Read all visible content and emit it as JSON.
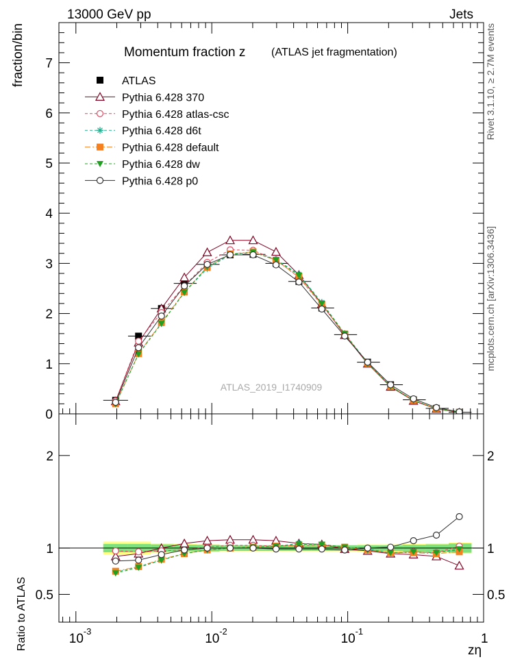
{
  "header": {
    "left": "13000 GeV pp",
    "right": "Jets",
    "side_top": "Rivet 3.1.10, ≥ 2.7M events",
    "side_bottom": "mcplots.cern.ch [arXiv:1306.3436]"
  },
  "chart_data": [
    {
      "type": "line",
      "title": "Momentum fraction z",
      "subtitle": "(ATLAS jet fragmentation)",
      "ylabel": "fraction/bin",
      "watermark": "ATLAS_2019_I1740909",
      "x_scale": "log",
      "xlim": [
        0.00075,
        1.0
      ],
      "ylim": [
        0,
        7.8
      ],
      "y_ticks": [
        0,
        1,
        2,
        3,
        4,
        5,
        6,
        7
      ],
      "y_tick_labels": [
        "0",
        "1",
        "2",
        "3",
        "4",
        "5",
        "6",
        "7"
      ],
      "x": [
        0.00196,
        0.00289,
        0.00426,
        0.00628,
        0.00926,
        0.01365,
        0.02013,
        0.02968,
        0.04375,
        0.0645,
        0.0951,
        0.1402,
        0.2067,
        0.3048,
        0.4494,
        0.6625
      ],
      "x_widths": [
        [
          0.00159,
          0.00242
        ],
        [
          0.00242,
          0.00356
        ],
        [
          0.00356,
          0.00525
        ],
        [
          0.00525,
          0.00774
        ],
        [
          0.00774,
          0.01141
        ],
        [
          0.01141,
          0.01682
        ],
        [
          0.01682,
          0.0248
        ],
        [
          0.0248,
          0.03656
        ],
        [
          0.03656,
          0.0539
        ],
        [
          0.0539,
          0.07946
        ],
        [
          0.07946,
          0.11714
        ],
        [
          0.11714,
          0.1727
        ],
        [
          0.1727,
          0.2546
        ],
        [
          0.2546,
          0.3753
        ],
        [
          0.3753,
          0.5533
        ],
        [
          0.5533,
          0.8157
        ]
      ],
      "series": [
        {
          "name": "ATLAS",
          "color": "#000000",
          "marker": "square-filled",
          "dash": "none",
          "values": [
            0.27,
            1.55,
            2.1,
            2.6,
            2.98,
            3.17,
            3.18,
            3.0,
            2.64,
            2.11,
            1.58,
            1.03,
            0.58,
            0.28,
            0.11,
            0.03
          ]
        },
        {
          "name": "Pythia 6.428 370",
          "color": "#800020",
          "marker": "triangle-open",
          "dash": "none",
          "values": [
            0.25,
            1.42,
            2.1,
            2.72,
            3.22,
            3.46,
            3.46,
            3.23,
            2.77,
            2.19,
            1.57,
            1.0,
            0.54,
            0.26,
            0.1,
            0.025
          ]
        },
        {
          "name": "Pythia 6.428 atlas-csc",
          "color": "#e0445c",
          "marker": "circle-open",
          "dash": "4,3",
          "values": [
            0.26,
            1.45,
            2.02,
            2.55,
            3.02,
            3.27,
            3.26,
            3.07,
            2.72,
            2.17,
            1.59,
            1.01,
            0.55,
            0.27,
            0.104,
            0.028
          ]
        },
        {
          "name": "Pythia 6.428 d6t",
          "color": "#20b090",
          "marker": "star",
          "dash": "4,3",
          "values": [
            0.2,
            1.2,
            1.8,
            2.42,
            2.9,
            3.17,
            3.22,
            3.08,
            2.78,
            2.22,
            1.6,
            1.02,
            0.55,
            0.27,
            0.105,
            0.029
          ]
        },
        {
          "name": "Pythia 6.428 default",
          "color": "#f58020",
          "marker": "square-filled",
          "dash": "8,3,2,3",
          "values": [
            0.2,
            1.2,
            1.82,
            2.43,
            2.92,
            3.19,
            3.23,
            3.06,
            2.73,
            2.18,
            1.59,
            1.01,
            0.55,
            0.27,
            0.104,
            0.029
          ]
        },
        {
          "name": "Pythia 6.428 dw",
          "color": "#20a020",
          "marker": "triangle-down-filled",
          "dash": "4,3",
          "values": [
            0.2,
            1.19,
            1.8,
            2.42,
            2.93,
            3.18,
            3.22,
            3.07,
            2.76,
            2.2,
            1.6,
            1.01,
            0.55,
            0.27,
            0.104,
            0.029
          ]
        },
        {
          "name": "Pythia 6.428 p0",
          "color": "#303030",
          "marker": "circle-open",
          "dash": "none",
          "values": [
            0.23,
            1.32,
            1.95,
            2.55,
            2.98,
            3.17,
            3.17,
            2.97,
            2.63,
            2.09,
            1.55,
            1.03,
            0.58,
            0.3,
            0.125,
            0.039
          ]
        }
      ]
    },
    {
      "type": "line",
      "ylabel": "Ratio to ATLAS",
      "xlabel": "zη",
      "x_scale": "log",
      "xlim": [
        0.00075,
        1.0
      ],
      "ylim": [
        0.2,
        2.45
      ],
      "y_ticks": [
        0.5,
        1,
        2
      ],
      "y_tick_labels": [
        "0.5",
        "1",
        "2"
      ],
      "x_ticks": [
        0.001,
        0.01,
        0.1,
        1
      ],
      "x_tick_labels": [
        "10",
        "10",
        "10",
        "1"
      ],
      "x_tick_exponents": [
        "-3",
        "-2",
        "-1",
        ""
      ],
      "band_inner": [
        0.045,
        0.045,
        0.04,
        0.035,
        0.035,
        0.03,
        0.03,
        0.03,
        0.03,
        0.03,
        0.03,
        0.03,
        0.03,
        0.035,
        0.04,
        0.05
      ],
      "band_outer": [
        0.07,
        0.07,
        0.05,
        0.045,
        0.04,
        0.035,
        0.035,
        0.035,
        0.035,
        0.035,
        0.035,
        0.04,
        0.04,
        0.045,
        0.05,
        0.06
      ],
      "band_inner_color": "#7fe07f",
      "band_outer_color": "#ffff80",
      "series": [
        {
          "name": "Pythia 6.428 370",
          "values": [
            0.91,
            0.94,
            1.0,
            1.05,
            1.08,
            1.09,
            1.09,
            1.08,
            1.05,
            1.04,
            0.99,
            0.97,
            0.94,
            0.93,
            0.91,
            0.81
          ]
        },
        {
          "name": "Pythia 6.428 atlas-csc",
          "values": [
            0.97,
            0.96,
            0.97,
            0.98,
            1.01,
            1.03,
            1.03,
            1.02,
            1.03,
            1.03,
            1.01,
            0.98,
            0.95,
            0.96,
            0.95,
            1.02
          ]
        },
        {
          "name": "Pythia 6.428 d6t",
          "values": [
            0.74,
            0.8,
            0.87,
            0.94,
            0.98,
            1.0,
            1.01,
            1.02,
            1.05,
            1.04,
            1.01,
            0.99,
            0.95,
            0.96,
            0.95,
            0.98
          ]
        },
        {
          "name": "Pythia 6.428 default",
          "values": [
            0.75,
            0.8,
            0.88,
            0.94,
            0.98,
            1.0,
            1.01,
            1.02,
            1.03,
            1.03,
            1.01,
            0.98,
            0.95,
            0.95,
            0.94,
            0.96
          ]
        },
        {
          "name": "Pythia 6.428 dw",
          "values": [
            0.73,
            0.79,
            0.87,
            0.94,
            0.98,
            1.0,
            1.01,
            1.02,
            1.04,
            1.04,
            1.01,
            0.98,
            0.95,
            0.96,
            0.95,
            0.99
          ]
        },
        {
          "name": "Pythia 6.428 p0",
          "values": [
            0.86,
            0.87,
            0.93,
            0.98,
            1.0,
            1.0,
            1.0,
            0.99,
            0.99,
            0.99,
            0.98,
            1.0,
            1.01,
            1.08,
            1.14,
            1.34
          ]
        }
      ]
    }
  ]
}
